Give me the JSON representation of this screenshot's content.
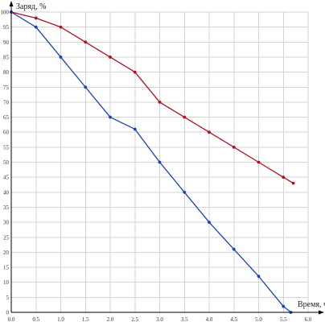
{
  "chart_data": {
    "type": "line",
    "title": "",
    "xlabel": "Время, ч",
    "ylabel": "Заряд, %",
    "xlim": [
      0,
      6
    ],
    "ylim": [
      0,
      100
    ],
    "x_ticks": [
      "0.0",
      "0.5",
      "1.0",
      "1.5",
      "2.0",
      "2.5",
      "3.0",
      "3.5",
      "4.0",
      "4.5",
      "5.0",
      "5.5",
      "6.0"
    ],
    "y_ticks": [
      "0",
      "5",
      "10",
      "15",
      "20",
      "25",
      "30",
      "35",
      "40",
      "45",
      "50",
      "55",
      "60",
      "65",
      "70",
      "75",
      "80",
      "85",
      "90",
      "95",
      "100"
    ],
    "grid": true,
    "legend": "none",
    "series": [
      {
        "color": "#b01020",
        "x": [
          0,
          0.5,
          1.0,
          1.5,
          2.0,
          2.5,
          3.0,
          3.5,
          4.0,
          4.5,
          5.0,
          5.5,
          5.7
        ],
        "y": [
          100,
          98,
          95,
          90,
          85,
          80,
          70,
          65,
          60,
          55,
          50,
          45,
          43
        ]
      },
      {
        "color": "#1a3fbf",
        "x": [
          0,
          0.5,
          1.0,
          1.5,
          2.0,
          2.5,
          3.0,
          3.5,
          4.0,
          4.5,
          5.0,
          5.5,
          5.65
        ],
        "y": [
          100,
          95,
          85,
          75,
          65,
          61,
          50,
          40,
          30,
          21,
          12,
          2,
          0
        ]
      }
    ]
  }
}
